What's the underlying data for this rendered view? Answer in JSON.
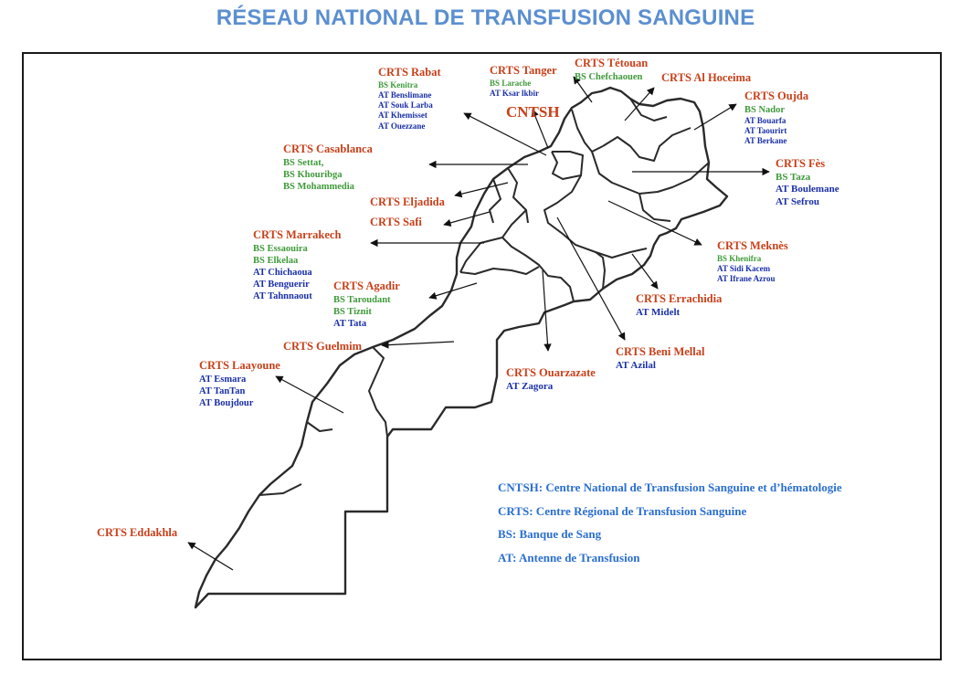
{
  "title": "RÉSEAU NATIONAL DE TRANSFUSION SANGUINE",
  "cntsh": "CNTSH",
  "centers": {
    "rabat": {
      "name": "CRTS  Rabat",
      "bs": [
        "BS Kenitra"
      ],
      "at": [
        "AT Benslimane",
        "AT Souk Larba",
        "AT Khemisset",
        "AT Ouezzane"
      ]
    },
    "tanger": {
      "name": "CRTS Tanger",
      "bs": [
        "BS Larache"
      ],
      "at": [
        "AT Ksar lkbir"
      ]
    },
    "tetouan": {
      "name": "CRTS Tétouan",
      "bs": [
        "BS Chefchaouen"
      ]
    },
    "alhoceima": {
      "name": "CRTS  Al Hoceima"
    },
    "oujda": {
      "name": "CRTS  Oujda",
      "bs": [
        "BS Nador"
      ],
      "at": [
        "AT Bouarfa",
        "AT Taourirt",
        "AT Berkane"
      ]
    },
    "casablanca": {
      "name": "CRTS  Casablanca",
      "bs": [
        "BS Settat,",
        "BS Khouribga",
        "BS Mohammedia"
      ]
    },
    "fes": {
      "name": "CRTS  Fès",
      "bs": [
        "BS Taza"
      ],
      "at": [
        "AT  Boulemane",
        "AT  Sefrou"
      ]
    },
    "eljadida": {
      "name": "CRTS Eljadida"
    },
    "safi": {
      "name": "CRTS  Safi"
    },
    "marrakech": {
      "name": "CRTS  Marrakech",
      "bs": [
        "BS Essaouira",
        "BS Elkelaa"
      ],
      "at": [
        "AT  Chichaoua",
        "AT  Benguerir",
        "AT  Tahnnaout"
      ]
    },
    "meknes": {
      "name": "CRTS  Meknès",
      "bs": [
        "BS Khenifra"
      ],
      "at": [
        "AT  Sidi Kacem",
        "AT  Ifrane Azrou"
      ]
    },
    "agadir": {
      "name": "CRTS  Agadir",
      "bs": [
        "BS Taroudant",
        "BS Tiznit"
      ],
      "at": [
        "AT  Tata"
      ]
    },
    "errachidia": {
      "name": "CRTS Errachidia",
      "at": [
        "AT   Midelt"
      ]
    },
    "guelmim": {
      "name": "CRTS  Guelmim"
    },
    "benimellal": {
      "name": "CRTS   Beni Mellal",
      "at": [
        "AT  Azilal"
      ]
    },
    "laayoune": {
      "name": "CRTS  Laayoune",
      "at": [
        "AT  Esmara",
        "AT  TanTan",
        "AT  Boujdour"
      ]
    },
    "ouarzazate": {
      "name": "CRTS Ouarzazate",
      "at": [
        "AT  Zagora"
      ]
    },
    "eddakhla": {
      "name": "CRTS  Eddakhla"
    }
  },
  "legend": [
    "CNTSH:   Centre National de Transfusion Sanguine et d’hématologie",
    "CRTS:  Centre Régional de Transfusion Sanguine",
    "BS: Banque de Sang",
    "AT:  Antenne de Transfusion"
  ],
  "colors": {
    "title": "#5b8fd0",
    "crts": "#c8401a",
    "bs": "#3f9a3a",
    "at": "#1a2fa8",
    "legend": "#2a6ed0"
  }
}
